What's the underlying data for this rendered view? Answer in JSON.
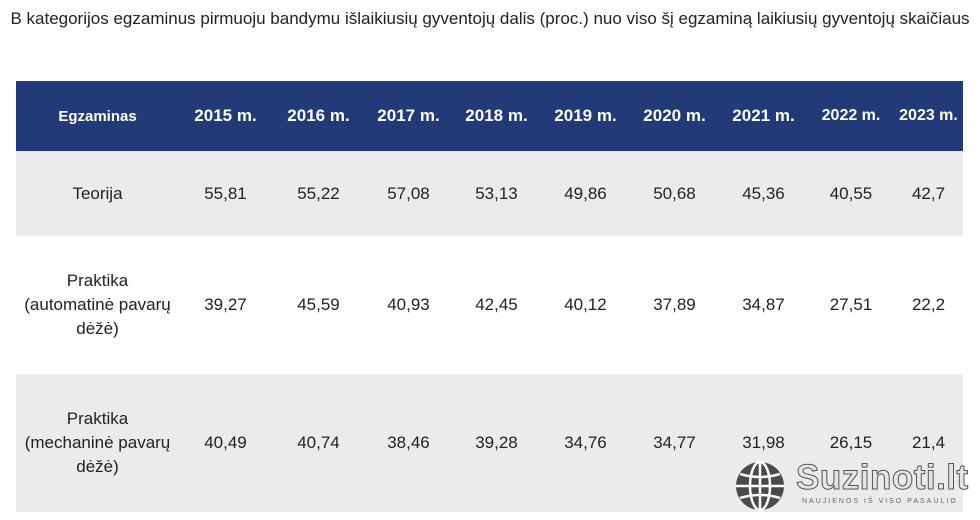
{
  "title": "B kategorijos egzaminus pirmuoju bandymu išlaikiusių gyventojų dalis (proc.) nuo viso šį egzaminą laikiusių gyventojų skaičiaus",
  "chart_data": {
    "type": "table",
    "columns": [
      "Egzaminas",
      "2015 m.",
      "2016 m.",
      "2017 m.",
      "2018 m.",
      "2019 m.",
      "2020 m.",
      "2021 m.",
      "2022 m.",
      "2023 m."
    ],
    "rows": [
      {
        "label": "Teorija",
        "values": [
          "55,81",
          "55,22",
          "57,08",
          "53,13",
          "49,86",
          "50,68",
          "45,36",
          "40,55",
          "42,7"
        ]
      },
      {
        "label": "Praktika (automatinė pavarų dėžė)",
        "values": [
          "39,27",
          "45,59",
          "40,93",
          "42,45",
          "40,12",
          "37,89",
          "34,87",
          "27,51",
          "22,2"
        ]
      },
      {
        "label": "Praktika (mechaninė pavarų dėžė)",
        "values": [
          "40,49",
          "40,74",
          "38,46",
          "39,28",
          "34,76",
          "34,77",
          "31,98",
          "26,15",
          "21,4"
        ]
      }
    ]
  },
  "colors": {
    "header_background": "#223a78",
    "header_text": "#ffffff",
    "row_shaded": "#ebebeb",
    "row_plain": "#ffffff"
  },
  "watermark": {
    "name": "Suzinoti.lt",
    "tagline": "NAUJIENOS IŠ VISO PASAULIO",
    "icon": "globe-icon"
  }
}
